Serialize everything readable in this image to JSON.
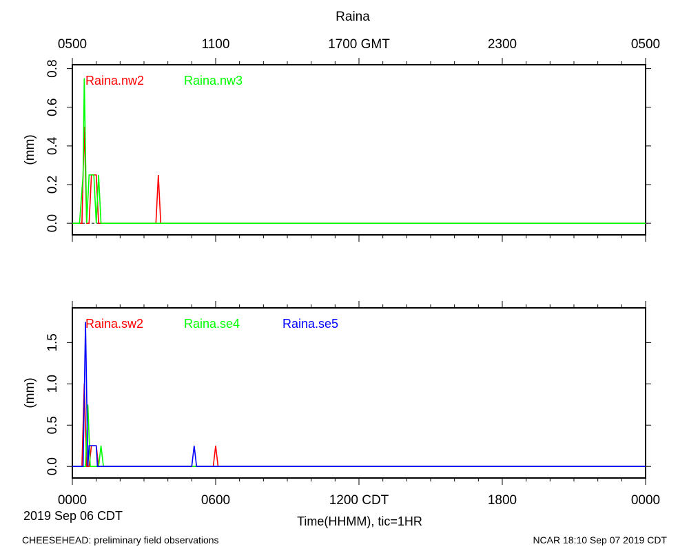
{
  "header": {
    "title": "Raina",
    "top_axis_labels": [
      "0500",
      "1100",
      "1700 GMT",
      "2300",
      "0500"
    ]
  },
  "footer": {
    "date_label": "2019 Sep 06 CDT",
    "xlabel": "Time(HHMM), tic=1HR",
    "left_note": "CHEESEHEAD: preliminary field observations",
    "right_note": "NCAR 18:10 Sep 07 2019 CDT"
  },
  "colors": {
    "red": "#ff0000",
    "green": "#00ff00",
    "blue": "#0000ff"
  },
  "chart_data": [
    {
      "type": "line",
      "title": "Raina",
      "ylabel": "(mm)",
      "xlim": [
        0,
        24
      ],
      "ylim": [
        -0.06,
        0.82
      ],
      "yticks": [
        0.0,
        0.2,
        0.4,
        0.6,
        0.8
      ],
      "ytick_labels": [
        "0.0",
        "0.2",
        "0.4",
        "0.6",
        "0.8"
      ],
      "top_xtick_labels": [
        "0500",
        "1100",
        "1700 GMT",
        "2300",
        "0500"
      ],
      "series": [
        {
          "name": "Raina.nw2",
          "color": "#ff0000",
          "x": [
            0,
            0.4,
            0.5,
            0.6,
            0.7,
            0.8,
            1.0,
            1.1,
            1.2,
            3.5,
            3.6,
            3.7,
            24
          ],
          "y": [
            0,
            0,
            0.5,
            0,
            0,
            0.25,
            0.25,
            0,
            0,
            0,
            0.25,
            0,
            0
          ]
        },
        {
          "name": "Raina.nw3",
          "color": "#00ff00",
          "x": [
            0,
            0.3,
            0.45,
            0.5,
            0.6,
            0.7,
            0.9,
            1.0,
            1.1,
            1.2,
            1.3,
            24
          ],
          "y": [
            0,
            0,
            0.25,
            0.75,
            0,
            0.25,
            0.25,
            0,
            0.25,
            0,
            0,
            0
          ]
        }
      ]
    },
    {
      "type": "line",
      "ylabel": "(mm)",
      "xlim": [
        0,
        24
      ],
      "ylim": [
        -0.14,
        1.92
      ],
      "yticks": [
        0.0,
        0.5,
        1.0,
        1.5
      ],
      "ytick_labels": [
        "0.0",
        "0.5",
        "1.0",
        "1.5"
      ],
      "xtick_labels": [
        "0000",
        "0600",
        "1200 CDT",
        "1800",
        "0000"
      ],
      "xtick_values": [
        0,
        6,
        12,
        18,
        24
      ],
      "series": [
        {
          "name": "Raina.sw2",
          "color": "#ff0000",
          "x": [
            0,
            0.4,
            0.5,
            0.6,
            0.7,
            0.8,
            1.0,
            1.1,
            5.9,
            6.0,
            6.1,
            24
          ],
          "y": [
            0,
            0,
            1.0,
            0,
            0,
            0.25,
            0.25,
            0,
            0,
            0.25,
            0,
            0
          ]
        },
        {
          "name": "Raina.se4",
          "color": "#00ff00",
          "x": [
            0,
            0.55,
            0.65,
            0.75,
            1.1,
            1.2,
            1.3,
            24
          ],
          "y": [
            0,
            0,
            0.75,
            0,
            0,
            0.25,
            0,
            0
          ]
        },
        {
          "name": "Raina.se5",
          "color": "#0000ff",
          "x": [
            0,
            0.45,
            0.55,
            0.65,
            0.7,
            1.0,
            1.05,
            5.0,
            5.1,
            5.2,
            24
          ],
          "y": [
            0,
            0,
            1.75,
            0,
            0.25,
            0.25,
            0,
            0,
            0.25,
            0,
            0
          ]
        }
      ]
    }
  ]
}
